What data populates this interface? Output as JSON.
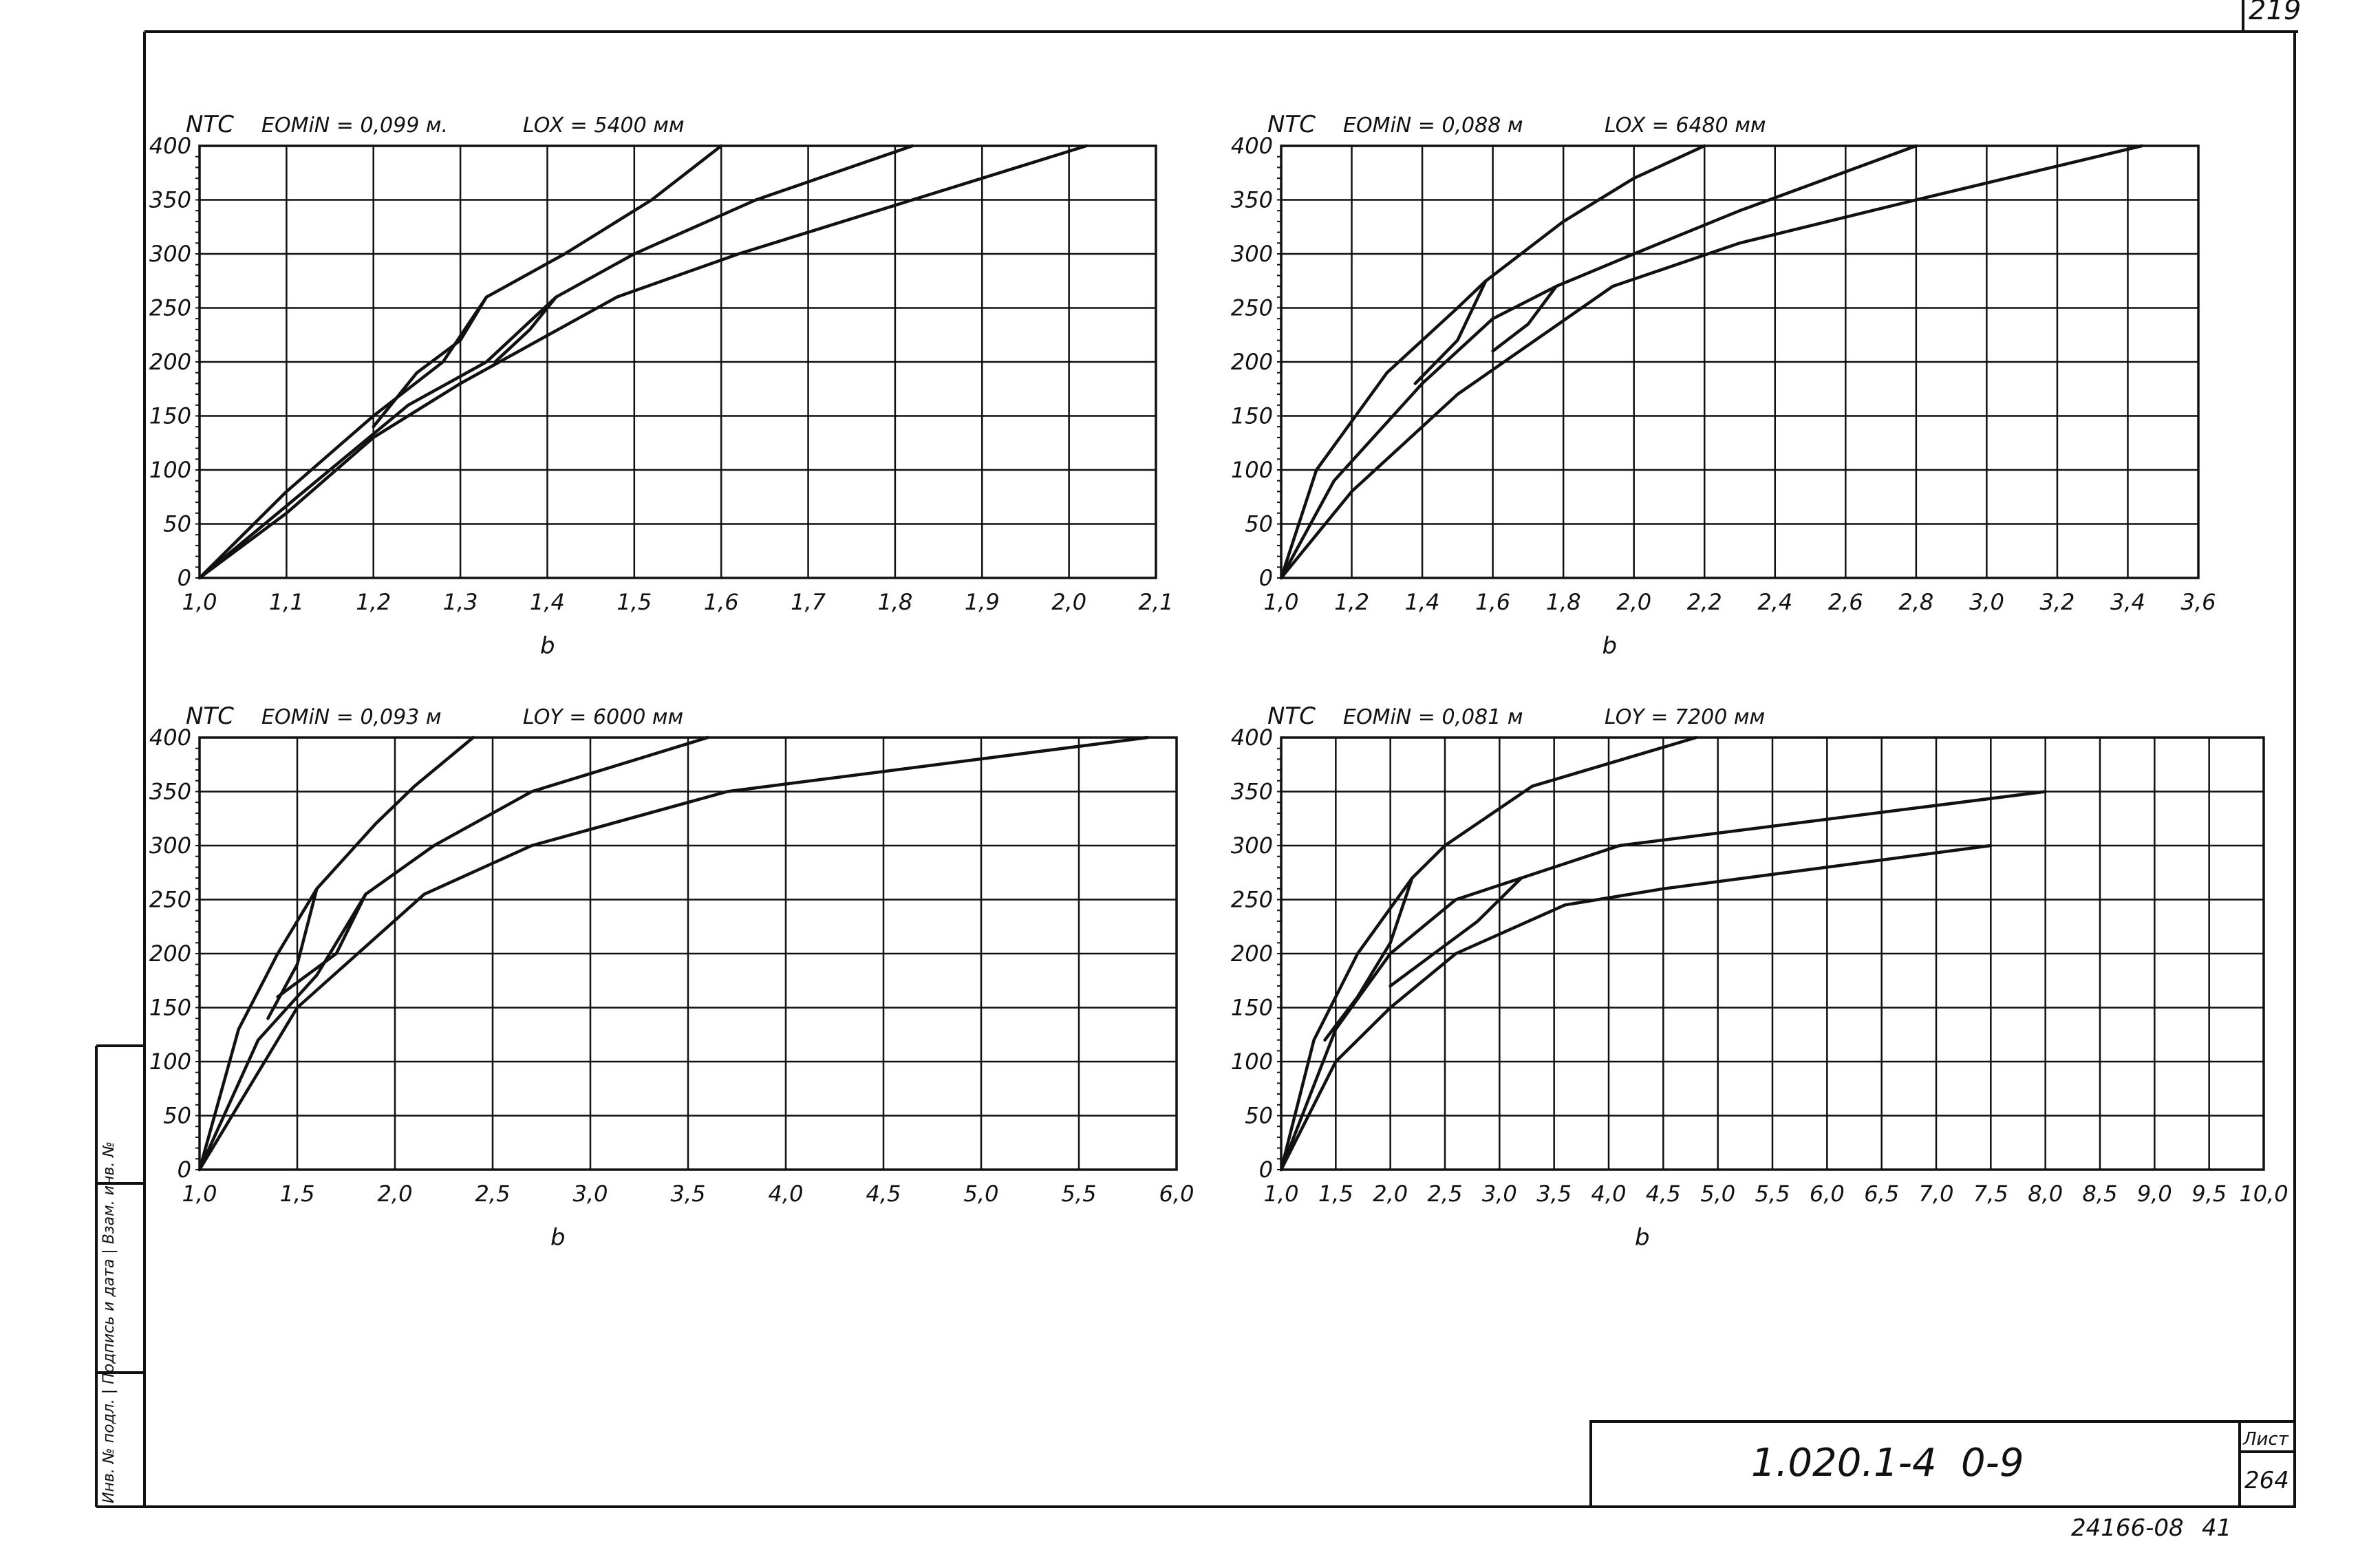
{
  "page_corner_number": "219",
  "title_block": {
    "doc_code": "1.020.1-4",
    "doc_suffix": "0-9",
    "sheet_label": "Лист",
    "sheet_number": "264"
  },
  "bottom_stamp": {
    "left": "24166-08",
    "right": "41"
  },
  "margin_side_text": "Инв. № подл. | Подпись и дата | Взам. инв. №",
  "chart_data": [
    {
      "type": "line",
      "ylabel": "NТС",
      "xlabel": "b",
      "header_left": "EOMiN = 0,099 м.",
      "header_right": "LOX = 5400 мм",
      "xlim": [
        1.0,
        2.1
      ],
      "ylim": [
        0,
        400
      ],
      "grid": true,
      "x_ticks": [
        "1,0",
        "1,1",
        "1,2",
        "1,3",
        "1,4",
        "1,5",
        "1,6",
        "1,7",
        "1,8",
        "1,9",
        "2,0",
        "2,1"
      ],
      "y_ticks": [
        "0",
        "50",
        "100",
        "150",
        "200",
        "250",
        "300",
        "350",
        "400"
      ],
      "series": [
        {
          "points": [
            [
              1.0,
              0
            ],
            [
              1.1,
              80
            ],
            [
              1.2,
              150
            ],
            [
              1.28,
              200
            ],
            [
              1.33,
              260
            ],
            [
              1.42,
              300
            ],
            [
              1.52,
              350
            ],
            [
              1.6,
              400
            ]
          ]
        },
        {
          "points": [
            [
              1.0,
              0
            ],
            [
              1.12,
              80
            ],
            [
              1.24,
              160
            ],
            [
              1.33,
              200
            ],
            [
              1.41,
              260
            ],
            [
              1.5,
              300
            ],
            [
              1.64,
              350
            ],
            [
              1.82,
              400
            ]
          ]
        },
        {
          "points": [
            [
              1.0,
              0
            ],
            [
              1.1,
              60
            ],
            [
              1.2,
              130
            ],
            [
              1.3,
              180
            ],
            [
              1.48,
              260
            ],
            [
              1.62,
              300
            ],
            [
              1.82,
              350
            ],
            [
              2.02,
              400
            ]
          ]
        },
        {
          "points": [
            [
              1.33,
              260
            ],
            [
              1.3,
              220
            ],
            [
              1.25,
              190
            ],
            [
              1.2,
              140
            ]
          ]
        },
        {
          "points": [
            [
              1.41,
              260
            ],
            [
              1.38,
              230
            ],
            [
              1.34,
              200
            ]
          ]
        }
      ]
    },
    {
      "type": "line",
      "ylabel": "NТС",
      "xlabel": "b",
      "header_left": "EOMiN = 0,088 м",
      "header_right": "LOX = 6480 мм",
      "xlim": [
        1.0,
        3.6
      ],
      "ylim": [
        0,
        400
      ],
      "grid": true,
      "x_ticks": [
        "1,0",
        "1,2",
        "1,4",
        "1,6",
        "1,8",
        "2,0",
        "2,2",
        "2,4",
        "2,6",
        "2,8",
        "3,0",
        "3,2",
        "3,4",
        "3,6"
      ],
      "y_ticks": [
        "0",
        "50",
        "100",
        "150",
        "200",
        "250",
        "300",
        "350",
        "400"
      ],
      "series": [
        {
          "points": [
            [
              1.0,
              0
            ],
            [
              1.1,
              100
            ],
            [
              1.3,
              190
            ],
            [
              1.5,
              250
            ],
            [
              1.58,
              275
            ],
            [
              1.8,
              330
            ],
            [
              2.0,
              370
            ],
            [
              2.2,
              400
            ]
          ]
        },
        {
          "points": [
            [
              1.0,
              0
            ],
            [
              1.15,
              90
            ],
            [
              1.4,
              180
            ],
            [
              1.6,
              240
            ],
            [
              1.78,
              270
            ],
            [
              2.0,
              300
            ],
            [
              2.3,
              340
            ],
            [
              2.8,
              400
            ]
          ]
        },
        {
          "points": [
            [
              1.0,
              0
            ],
            [
              1.2,
              80
            ],
            [
              1.5,
              170
            ],
            [
              1.94,
              270
            ],
            [
              2.3,
              310
            ],
            [
              2.8,
              350
            ],
            [
              3.44,
              400
            ]
          ]
        },
        {
          "points": [
            [
              1.58,
              275
            ],
            [
              1.5,
              220
            ],
            [
              1.38,
              180
            ]
          ]
        },
        {
          "points": [
            [
              1.78,
              270
            ],
            [
              1.7,
              235
            ],
            [
              1.6,
              210
            ]
          ]
        }
      ]
    },
    {
      "type": "line",
      "ylabel": "NТС",
      "xlabel": "b",
      "header_left": "EOMiN = 0,093 м",
      "header_right": "LOY = 6000 мм",
      "xlim": [
        1.0,
        6.0
      ],
      "ylim": [
        0,
        400
      ],
      "grid": true,
      "x_ticks": [
        "1,0",
        "1,5",
        "2,0",
        "2,5",
        "3,0",
        "3,5",
        "4,0",
        "4,5",
        "5,0",
        "5,5",
        "6,0"
      ],
      "y_ticks": [
        "0",
        "50",
        "100",
        "150",
        "200",
        "250",
        "300",
        "350",
        "400"
      ],
      "series": [
        {
          "points": [
            [
              1.0,
              0
            ],
            [
              1.2,
              130
            ],
            [
              1.4,
              200
            ],
            [
              1.6,
              260
            ],
            [
              1.9,
              320
            ],
            [
              2.1,
              355
            ],
            [
              2.4,
              400
            ]
          ]
        },
        {
          "points": [
            [
              1.0,
              0
            ],
            [
              1.3,
              120
            ],
            [
              1.6,
              180
            ],
            [
              1.85,
              255
            ],
            [
              2.2,
              300
            ],
            [
              2.7,
              350
            ],
            [
              3.6,
              400
            ]
          ]
        },
        {
          "points": [
            [
              1.0,
              0
            ],
            [
              1.5,
              150
            ],
            [
              2.15,
              255
            ],
            [
              2.7,
              300
            ],
            [
              3.7,
              350
            ],
            [
              5.85,
              400
            ]
          ]
        },
        {
          "points": [
            [
              1.6,
              260
            ],
            [
              1.5,
              190
            ],
            [
              1.35,
              140
            ]
          ]
        },
        {
          "points": [
            [
              1.85,
              255
            ],
            [
              1.7,
              200
            ],
            [
              1.4,
              160
            ]
          ]
        }
      ]
    },
    {
      "type": "line",
      "ylabel": "NТС",
      "xlabel": "b",
      "header_left": "EOMiN = 0,081 м",
      "header_right": "LOY = 7200 мм",
      "xlim": [
        1.0,
        10.0
      ],
      "ylim": [
        0,
        400
      ],
      "grid": true,
      "x_ticks": [
        "1,0",
        "1,5",
        "2,0",
        "2,5",
        "3,0",
        "3,5",
        "4,0",
        "4,5",
        "5,0",
        "5,5",
        "6,0",
        "6,5",
        "7,0",
        "7,5",
        "8,0",
        "8,5",
        "9,0",
        "9,5",
        "10,0"
      ],
      "y_ticks": [
        "0",
        "50",
        "100",
        "150",
        "200",
        "250",
        "300",
        "350",
        "400"
      ],
      "series": [
        {
          "points": [
            [
              1.0,
              0
            ],
            [
              1.3,
              120
            ],
            [
              1.7,
              200
            ],
            [
              2.2,
              270
            ],
            [
              2.5,
              300
            ],
            [
              3.3,
              355
            ],
            [
              4.8,
              400
            ]
          ]
        },
        {
          "points": [
            [
              1.0,
              0
            ],
            [
              1.5,
              130
            ],
            [
              2.0,
              200
            ],
            [
              2.6,
              250
            ],
            [
              3.2,
              270
            ],
            [
              4.1,
              300
            ],
            [
              8.0,
              350
            ]
          ]
        },
        {
          "points": [
            [
              1.0,
              0
            ],
            [
              1.5,
              100
            ],
            [
              2.0,
              150
            ],
            [
              2.6,
              200
            ],
            [
              3.6,
              245
            ],
            [
              4.5,
              260
            ],
            [
              7.5,
              300
            ]
          ]
        },
        {
          "points": [
            [
              2.2,
              270
            ],
            [
              2.0,
              210
            ],
            [
              1.7,
              160
            ],
            [
              1.4,
              120
            ]
          ]
        },
        {
          "points": [
            [
              3.2,
              270
            ],
            [
              2.8,
              230
            ],
            [
              2.4,
              200
            ],
            [
              2.0,
              170
            ]
          ]
        }
      ]
    }
  ]
}
